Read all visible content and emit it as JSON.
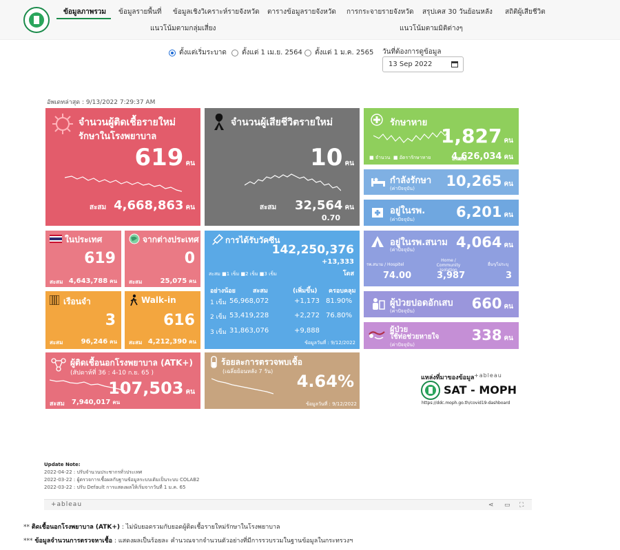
{
  "nav": {
    "items": [
      "ข้อมูลภาพรวม",
      "ข้อมูลรายพื้นที่",
      "ข้อมูลเชิงวิเคราะห์รายจังหวัด",
      "ตารางข้อมูลรายจังหวัด",
      "การกระจายรายจังหวัด",
      "สรุปเคส 30 วันย้อนหลัง",
      "สถิติผู้เสียชีวิต",
      "แนวโน้มตามกลุ่มเสี่ยง",
      "แนวโน้มตามมิติต่างๆ"
    ],
    "active": "ข้อมูลภาพรวม"
  },
  "filters": {
    "radio": [
      "ตั้งแต่เริ่มระบาด",
      "ตั้งแต่ 1 เม.ย. 2564",
      "ตั้งแต่ 1 ม.ค. 2565"
    ],
    "selected": "ตั้งแต่เริ่มระบาด",
    "date_label": "วันที่ต้องการดูข้อมูล",
    "date_value": "13 Sep 2022"
  },
  "updated": "อัพเดทล่าสุด : 9/13/2022 7:29:37 AM",
  "cards": {
    "new_cases": {
      "title1": "จำนวนผู้ติดเชื้อรายใหม่",
      "title2": "รักษาในโรงพยาบาล",
      "value": "619",
      "unit": "คน",
      "cum_label": "สะสม",
      "cum_value": "4,668,863",
      "cum_unit": "คน",
      "color": "#e35c6b"
    },
    "new_deaths": {
      "title": "จำนวนผู้เสียชีวิตรายใหม่",
      "value": "10",
      "unit": "คน",
      "cum_label": "สะสม",
      "cum_value": "32,564",
      "cum_unit": "คน",
      "rate": "0.70",
      "color": "#757575"
    },
    "recovered": {
      "title": "รักษาหาย",
      "value": "1,827",
      "unit": "คน",
      "legend1": "จำนวน",
      "legend2": "อัตรารักษาหาย",
      "cum_label": "สะสม",
      "cum_value": "4,626,034",
      "cum_unit": "คน",
      "color": "#8fcf5c"
    },
    "treating": {
      "title": "กำลังรักษา",
      "sub": "(ค่าปัจจุบัน)",
      "value": "10,265",
      "unit": "คน",
      "color": "#7fb0e3"
    },
    "in_hospital": {
      "title": "อยู่ในรพ.",
      "sub": "(ค่าปัจจุบัน)",
      "value": "6,201",
      "unit": "คน",
      "color": "#6fa7e0"
    },
    "domestic": {
      "title": "ในประเทศ",
      "value": "619",
      "cum_label": "สะสม",
      "cum_value": "4,643,788",
      "cum_unit": "คน",
      "color": "#ea7a85"
    },
    "abroad": {
      "title": "จากต่างประเทศ",
      "value": "0",
      "cum_label": "สะสม",
      "cum_value": "25,075",
      "cum_unit": "คน",
      "color": "#ea7a85"
    },
    "prison": {
      "title": "เรือนจำ",
      "value": "3",
      "cum_label": "สะสม",
      "cum_value": "96,246",
      "cum_unit": "คน",
      "color": "#f3a63f"
    },
    "walkin": {
      "title": "Walk-in",
      "value": "616",
      "cum_label": "สะสม",
      "cum_value": "4,212,390",
      "cum_unit": "คน",
      "color": "#f3a63f"
    },
    "vaccine": {
      "title": "การได้รับวัคซีน",
      "total": "142,250,376",
      "delta": "+13,333",
      "unit": "โดส",
      "legend": [
        "สะสม",
        "1 เข็ม",
        "2 เข็ม",
        "3 เข็ม"
      ],
      "headers": [
        "อย่างน้อย",
        "สะสม",
        "(เพิ่มขึ้น)",
        "ครอบคลุม"
      ],
      "rows": [
        {
          "dose": "1 เข็ม",
          "cum": "56,968,072",
          "inc": "+1,173",
          "cov": "81.90%"
        },
        {
          "dose": "2 เข็ม",
          "cum": "53,419,228",
          "inc": "+2,272",
          "cov": "76.80%"
        },
        {
          "dose": "3 เข็ม",
          "cum": "31,863,076",
          "inc": "+9,888",
          "cov": ""
        }
      ],
      "asof": "ข้อมูลวันที่ : 9/12/2022",
      "color": "#5aa9e6"
    },
    "field_hospital": {
      "title": "อยู่ในรพ.สนาม",
      "sub": "(ค่าปัจจุบัน)",
      "value": "4,064",
      "unit": "คน",
      "col1_label": "รพ.สนาม / Hospitel",
      "col2_label": "Home / Community Isolation",
      "col3_label": "อื่นๆ/ไม่ระบุ",
      "col1": "74.00",
      "col2": "3,987",
      "col3": "3",
      "color": "#8f9fe0"
    },
    "pneumonia": {
      "title": "ผู้ป่วยปอดอักเสบ",
      "sub": "(ค่าปัจจุบัน)",
      "value": "660",
      "unit": "คน",
      "color": "#9a96dc"
    },
    "ventilator": {
      "title": "ผู้ป่วย",
      "title2": "ใช้ท่อช่วยหายใจ",
      "sub": "(ค่าปัจจุบัน)",
      "value": "338",
      "unit": "คน",
      "color": "#c58fd6"
    },
    "atk": {
      "title": "ผู้ติดเชื้อนอกโรงพยาบาล (ATK+)",
      "sub": "(สัปดาห์ที่ 36 : 4-10 ก.ย. 65 )",
      "value": "107,503",
      "unit": "คน",
      "cum_label": "สะสม",
      "cum_value": "7,940,017",
      "cum_unit": "คน",
      "color": "#e76f7c"
    },
    "positivity": {
      "title": "ร้อยละการตรวจพบเชื้อ",
      "sub": "(เฉลี่ยย้อนหลัง 7 วัน)",
      "value": "4.64%",
      "asof": "ข้อมูลวันที่ : 9/12/2022",
      "color": "#c7a47f"
    }
  },
  "source": {
    "label": "แหล่งที่มาของข้อมูล",
    "tableau": "+ableau",
    "brand": "SAT - MOPH",
    "url": "https://ddc.moph.go.th/covid19-dashboard"
  },
  "update_note": {
    "title": "Update Note:",
    "lines": [
      "2022-04-22 : ปรับจำนวนประชากรทั่วประเทศ",
      "2022-03-22 : ผู้ตรวจการเชื้อผลกับฐานข้อมูลระบบเดิมเป็นระบบ COLAB2",
      "2022-03-22 : ปรับ Default การแสดงผลให้เริ่มจากวันที่ 1 ม.ค. 65"
    ]
  },
  "tableau_bar": {
    "logo": "+ableau"
  },
  "footnotes": [
    {
      "mark": "**",
      "bold": "ติดเชื้อนอกโรงพยาบาล (ATK+)",
      "text": " : ไม่นับยอดรวมกับยอดผู้ติดเชื้อรายใหม่รักษาในโรงพยาบาล"
    },
    {
      "mark": "***",
      "bold": "ข้อมูลจำนวนการตรวจหาเชื้อ",
      "text": " : แสดงผลเป็นร้อยละ คำนวณจากจำนวนตัวอย่างที่มีการรวบรวมในฐานข้อมูลในกระทรวงฯ"
    }
  ]
}
